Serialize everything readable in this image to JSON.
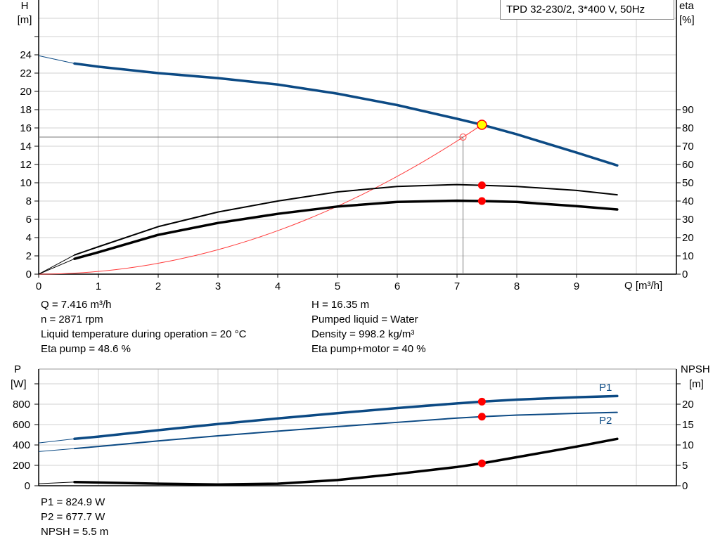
{
  "title": "TPD 32-230/2, 3*400 V, 50Hz",
  "colors": {
    "head": "#0c4a84",
    "eta": "#000000",
    "system": "#ff3b3b",
    "duty_point": "#ff0000",
    "duty_head_fill": "#ffff00",
    "grid": "#d0d0d0"
  },
  "chart_data": [
    {
      "type": "line",
      "xlabel": "Q [m³/h]",
      "ylabel_left": {
        "name": "H",
        "unit": "[m]"
      },
      "ylabel_right": {
        "name": "eta",
        "unit": "[%]"
      },
      "xlim": [
        0,
        10.6
      ],
      "ylim_left": [
        0,
        30
      ],
      "ylim_right": [
        0,
        115
      ],
      "x_ticks": [
        "0",
        "1",
        "2",
        "3",
        "4",
        "5",
        "6",
        "7",
        "8",
        "9"
      ],
      "y_ticks_left": [
        "0",
        "2",
        "4",
        "6",
        "8",
        "10",
        "12",
        "14",
        "16",
        "18",
        "20",
        "22",
        "24"
      ],
      "y_ticks_right": [
        "0",
        "10",
        "20",
        "30",
        "40",
        "50",
        "60",
        "70",
        "80",
        "90"
      ],
      "grid": true,
      "series": [
        {
          "id": "head",
          "axis": "left",
          "x": [
            0,
            0.6,
            1,
            2,
            3,
            4,
            5,
            6,
            7,
            7.416,
            8,
            9,
            9.68
          ],
          "y": [
            23.9,
            23.05,
            22.7,
            22.0,
            21.45,
            20.75,
            19.75,
            18.5,
            17.0,
            16.35,
            15.3,
            13.3,
            11.9
          ]
        },
        {
          "id": "eta_pump",
          "axis": "right",
          "x": [
            0,
            0.6,
            1,
            2,
            3,
            4,
            5,
            6,
            7,
            7.416,
            8,
            9,
            9.68
          ],
          "y": [
            0,
            10.5,
            15,
            26,
            34,
            40,
            45,
            48,
            49,
            48.6,
            48,
            45.8,
            43.4
          ]
        },
        {
          "id": "eta_pump_motor",
          "axis": "right",
          "x": [
            0,
            0.6,
            1,
            2,
            3,
            4,
            5,
            6,
            7,
            7.416,
            8,
            9,
            9.68
          ],
          "y": [
            0,
            8.4,
            12,
            21.5,
            28,
            33,
            37,
            39.5,
            40.2,
            40,
            39.5,
            37.2,
            35.4
          ]
        },
        {
          "id": "system_curve",
          "axis": "left",
          "type": "quadratic",
          "x_end": 7.416,
          "k": 0.2973
        }
      ],
      "duty_point": {
        "Q": 7.416,
        "H": 16.35,
        "eta_pump": 48.6,
        "eta_pump_motor": 40
      },
      "requested_point": {
        "Q": 7.1,
        "H": 15
      }
    },
    {
      "type": "line",
      "ylabel_left": {
        "name": "P",
        "unit": "[W]"
      },
      "ylabel_right": {
        "name": "NPSH",
        "unit": "[m]"
      },
      "xlim": [
        0,
        10.6
      ],
      "ylim_left": [
        0,
        1000
      ],
      "ylim_right": [
        0,
        25
      ],
      "y_ticks_left": [
        "0",
        "200",
        "400",
        "600",
        "800"
      ],
      "y_ticks_right": [
        "0",
        "5",
        "10",
        "15",
        "20"
      ],
      "grid": true,
      "series": [
        {
          "id": "P1",
          "name": "P1",
          "axis": "left",
          "x": [
            0,
            0.6,
            1,
            2,
            3,
            4,
            5,
            6,
            7,
            7.416,
            8,
            9,
            9.68
          ],
          "y": [
            420,
            460,
            482,
            545,
            605,
            660,
            712,
            762,
            808,
            824.9,
            845,
            868,
            880
          ]
        },
        {
          "id": "P2",
          "name": "P2",
          "axis": "left",
          "x": [
            0,
            0.6,
            1,
            2,
            3,
            4,
            5,
            6,
            7,
            7.416,
            8,
            9,
            9.68
          ],
          "y": [
            335,
            365,
            385,
            440,
            490,
            535,
            580,
            622,
            664,
            677.7,
            693,
            710,
            720
          ]
        },
        {
          "id": "NPSH",
          "axis": "right",
          "x": [
            0,
            0.6,
            1,
            2,
            3,
            4,
            5,
            6,
            7,
            7.416,
            8,
            9,
            9.68
          ],
          "y": [
            0.5,
            0.9,
            0.8,
            0.5,
            0.3,
            0.5,
            1.4,
            2.9,
            4.6,
            5.5,
            7.0,
            9.6,
            11.5
          ]
        }
      ],
      "duty_point": {
        "Q": 7.416,
        "P1": 824.9,
        "P2": 677.7,
        "NPSH": 5.5
      }
    }
  ],
  "info": {
    "q": "Q = 7.416 m³/h",
    "n": "n = 2871 rpm",
    "temp": "Liquid temperature during operation = 20 °C",
    "eta_pump": "Eta pump = 48.6 %",
    "h": "H = 16.35 m",
    "liquid": "Pumped liquid = Water",
    "density": "Density = 998.2 kg/m³",
    "eta_total": "Eta pump+motor = 40 %",
    "p1": "P1 = 824.9 W",
    "p2": "P2 = 677.7 W",
    "npsh": "NPSH = 5.5 m"
  }
}
